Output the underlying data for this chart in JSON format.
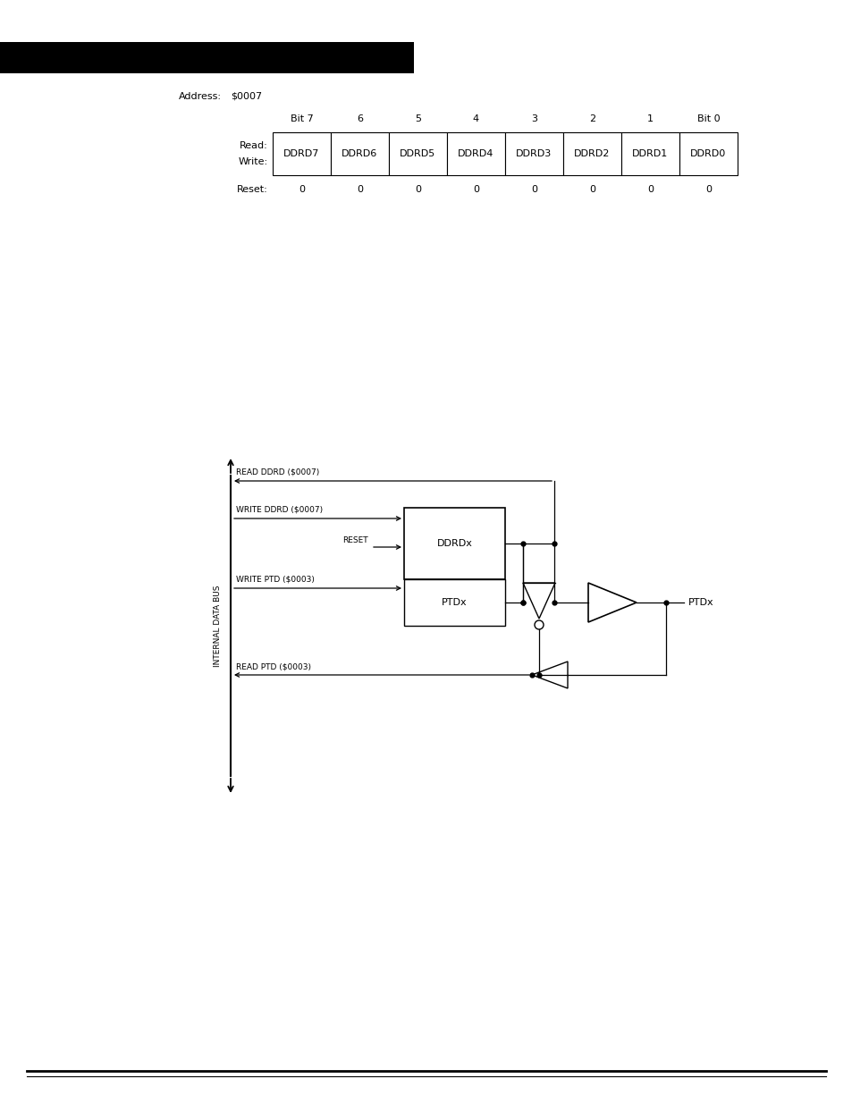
{
  "bg_color": "#ffffff",
  "header_bar_color": "#000000",
  "address_label": "Address:",
  "address_value": "$0007",
  "bit_labels": [
    "Bit 7",
    "6",
    "5",
    "4",
    "3",
    "2",
    "1",
    "Bit 0"
  ],
  "cell_labels": [
    "DDRD7",
    "DDRD6",
    "DDRD5",
    "DDRD4",
    "DDRD3",
    "DDRD2",
    "DDRD1",
    "DDRD0"
  ],
  "reset_label": "Reset:",
  "reset_values": [
    "0",
    "0",
    "0",
    "0",
    "0",
    "0",
    "0",
    "0"
  ],
  "diagram_label": "INTERNAL DATA BUS",
  "signal_labels": [
    "READ DDRD ($0007)",
    "WRITE DDRD ($0007)",
    "RESET",
    "WRITE PTD ($0003)",
    "READ PTD ($0003)"
  ],
  "box_labels": [
    "DDRDx",
    "PTDx"
  ],
  "output_label": "PTDx",
  "line_color": "#000000"
}
